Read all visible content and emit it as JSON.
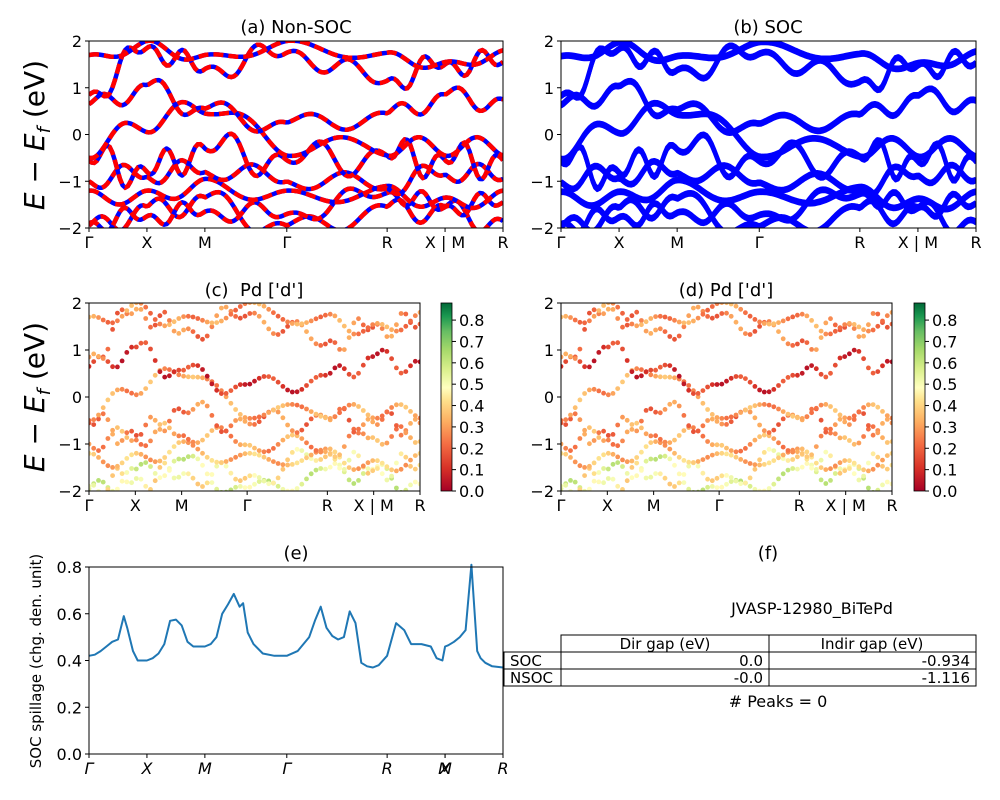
{
  "colors": {
    "nonsoc_up": "#0000ff",
    "nonsoc_dn": "#ff0000",
    "soc": "#0000ff",
    "spillage_line": "#1f77b4",
    "colormap": "RdYlGn"
  },
  "chart_data": [
    {
      "id": "a",
      "type": "line",
      "title": "(a) Non-SOC",
      "ylabel": "E − E_f (eV)",
      "ylim": [
        -2,
        2
      ],
      "yticks": [
        "−2",
        "−1",
        "0",
        "1",
        "2"
      ],
      "xticks": [
        "Γ",
        "X",
        "M",
        "Γ",
        "R",
        "X | M",
        "R"
      ],
      "xtick_positions": [
        0,
        0.5,
        1.0,
        1.707,
        2.573,
        3.073,
        3.573
      ],
      "xlim": [
        0,
        3.573
      ],
      "bands_at_ticks": [
        [
          -1.95,
          -1.55,
          -1.35,
          -1.95,
          -1.55,
          -1.55,
          -1.85
        ],
        [
          -1.9,
          -1.75,
          -1.65,
          -1.7,
          -1.25,
          -1.55,
          -1.45
        ],
        [
          -1.2,
          -1.2,
          -0.95,
          -1.2,
          -1.1,
          -1.35,
          -1.2
        ],
        [
          -1.0,
          -0.9,
          -0.8,
          -1.0,
          -1.15,
          -0.85,
          -0.95
        ],
        [
          -0.55,
          -0.8,
          -0.3,
          -0.55,
          -0.45,
          -0.55,
          -0.55
        ],
        [
          -0.5,
          0.05,
          0.45,
          -0.45,
          -0.45,
          -0.45,
          -0.45
        ],
        [
          0.65,
          1.05,
          0.55,
          0.25,
          0.45,
          0.85,
          0.75
        ],
        [
          0.85,
          1.85,
          1.4,
          1.75,
          1.15,
          1.5,
          1.55
        ],
        [
          1.7,
          2.0,
          1.7,
          2.0,
          1.75,
          1.55,
          1.8
        ]
      ],
      "band_wiggle": [
        0.35,
        0.25,
        0.3,
        0.3,
        0.45,
        0.4,
        0.3,
        0.3,
        0.2
      ]
    },
    {
      "id": "b",
      "type": "line",
      "title": "(b) SOC",
      "ylim": [
        -2,
        2
      ],
      "yticks": [
        "−2",
        "−1",
        "0",
        "1",
        "2"
      ],
      "xticks": [
        "Γ",
        "X",
        "M",
        "Γ",
        "R",
        "X | M",
        "R"
      ],
      "xtick_positions": [
        0,
        0.5,
        1.0,
        1.707,
        2.573,
        3.073,
        3.573
      ],
      "xlim": [
        0,
        3.573
      ],
      "bands_at_ticks": [
        [
          -1.95,
          -1.55,
          -1.35,
          -1.95,
          -1.55,
          -1.55,
          -1.85
        ],
        [
          -1.9,
          -1.75,
          -1.65,
          -1.7,
          -1.25,
          -1.55,
          -1.45
        ],
        [
          -1.2,
          -1.2,
          -0.95,
          -1.2,
          -1.1,
          -1.35,
          -1.2
        ],
        [
          -1.0,
          -0.9,
          -0.8,
          -1.0,
          -1.15,
          -0.85,
          -0.95
        ],
        [
          -0.55,
          -0.8,
          -0.3,
          -0.55,
          -0.45,
          -0.55,
          -0.55
        ],
        [
          -0.5,
          0.05,
          0.45,
          -0.45,
          -0.45,
          -0.45,
          -0.45
        ],
        [
          0.65,
          1.05,
          0.55,
          0.25,
          0.45,
          0.85,
          0.75
        ],
        [
          0.85,
          1.85,
          1.4,
          1.75,
          1.15,
          1.5,
          1.55
        ],
        [
          1.7,
          2.0,
          1.7,
          2.0,
          1.75,
          1.55,
          1.8
        ]
      ],
      "band_wiggle": [
        0.35,
        0.25,
        0.3,
        0.3,
        0.45,
        0.4,
        0.3,
        0.3,
        0.2
      ]
    },
    {
      "id": "c",
      "type": "scatter",
      "title": "(c)  Pd ['d']",
      "ylabel": "E − E_f (eV)",
      "ylim": [
        -2,
        2
      ],
      "yticks": [
        "−2",
        "−1",
        "0",
        "1",
        "2"
      ],
      "xticks": [
        "Γ",
        "X",
        "M",
        "Γ",
        "R",
        "X | M",
        "R"
      ],
      "xtick_positions": [
        0,
        0.5,
        1.0,
        1.707,
        2.573,
        3.073,
        3.573
      ],
      "xlim": [
        0,
        3.573
      ],
      "colorbar": {
        "min": 0.0,
        "max": 0.88,
        "ticks": [
          "0.0",
          "0.1",
          "0.2",
          "0.3",
          "0.4",
          "0.5",
          "0.6",
          "0.7",
          "0.8"
        ]
      },
      "bands_at_ticks": [
        [
          -1.95,
          -1.55,
          -1.35,
          -1.95,
          -1.55,
          -1.55,
          -1.85
        ],
        [
          -1.9,
          -1.75,
          -1.65,
          -1.7,
          -1.25,
          -1.55,
          -1.45
        ],
        [
          -1.2,
          -1.2,
          -0.95,
          -1.2,
          -1.1,
          -1.35,
          -1.2
        ],
        [
          -1.0,
          -0.9,
          -0.8,
          -1.0,
          -1.15,
          -0.85,
          -0.95
        ],
        [
          -0.55,
          -0.8,
          -0.3,
          -0.55,
          -0.45,
          -0.55,
          -0.55
        ],
        [
          -0.5,
          0.05,
          0.45,
          -0.45,
          -0.45,
          -0.45,
          -0.45
        ],
        [
          0.65,
          1.05,
          0.55,
          0.25,
          0.45,
          0.85,
          0.75
        ],
        [
          0.85,
          1.85,
          1.4,
          1.75,
          1.15,
          1.5,
          1.55
        ],
        [
          1.7,
          2.0,
          1.7,
          2.0,
          1.75,
          1.55,
          1.8
        ]
      ],
      "band_weight": [
        0.55,
        0.45,
        0.35,
        0.3,
        0.25,
        0.3,
        0.12,
        0.25,
        0.28
      ]
    },
    {
      "id": "d",
      "type": "scatter",
      "title": "(d) Pd ['d']",
      "ylim": [
        -2,
        2
      ],
      "yticks": [
        "−2",
        "−1",
        "0",
        "1",
        "2"
      ],
      "xticks": [
        "Γ",
        "X",
        "M",
        "Γ",
        "R",
        "X | M",
        "R"
      ],
      "xtick_positions": [
        0,
        0.5,
        1.0,
        1.707,
        2.573,
        3.073,
        3.573
      ],
      "xlim": [
        0,
        3.573
      ],
      "colorbar": {
        "min": 0.0,
        "max": 0.88,
        "ticks": [
          "0.0",
          "0.1",
          "0.2",
          "0.3",
          "0.4",
          "0.5",
          "0.6",
          "0.7",
          "0.8"
        ]
      },
      "bands_at_ticks": [
        [
          -1.95,
          -1.55,
          -1.35,
          -1.95,
          -1.55,
          -1.55,
          -1.85
        ],
        [
          -1.9,
          -1.75,
          -1.65,
          -1.7,
          -1.25,
          -1.55,
          -1.45
        ],
        [
          -1.2,
          -1.2,
          -0.95,
          -1.2,
          -1.1,
          -1.35,
          -1.2
        ],
        [
          -1.0,
          -0.9,
          -0.8,
          -1.0,
          -1.15,
          -0.85,
          -0.95
        ],
        [
          -0.55,
          -0.8,
          -0.3,
          -0.55,
          -0.45,
          -0.55,
          -0.55
        ],
        [
          -0.5,
          0.05,
          0.45,
          -0.45,
          -0.45,
          -0.45,
          -0.45
        ],
        [
          0.65,
          1.05,
          0.55,
          0.25,
          0.45,
          0.85,
          0.75
        ],
        [
          0.85,
          1.85,
          1.4,
          1.75,
          1.15,
          1.5,
          1.55
        ],
        [
          1.7,
          2.0,
          1.7,
          2.0,
          1.75,
          1.55,
          1.8
        ]
      ],
      "band_weight": [
        0.55,
        0.45,
        0.35,
        0.3,
        0.25,
        0.3,
        0.12,
        0.25,
        0.28
      ]
    },
    {
      "id": "e",
      "type": "line",
      "title": "(e)",
      "ylabel": "SOC spillage (chg. den. unit)",
      "ylim": [
        0.0,
        0.8
      ],
      "yticks": [
        "0.0",
        "0.2",
        "0.4",
        "0.6",
        "0.8"
      ],
      "xticks": [
        "Γ",
        "X",
        "M",
        "Γ",
        "R",
        "X",
        "M",
        "R"
      ],
      "xtick_positions": [
        0,
        0.5,
        1.0,
        1.707,
        2.573,
        3.073,
        3.073,
        3.573
      ],
      "xlim": [
        0,
        3.573
      ],
      "x": [
        0,
        0.05,
        0.1,
        0.15,
        0.2,
        0.25,
        0.3,
        0.33,
        0.38,
        0.42,
        0.47,
        0.5,
        0.55,
        0.6,
        0.65,
        0.7,
        0.75,
        0.8,
        0.85,
        0.9,
        0.95,
        1.0,
        1.05,
        1.1,
        1.15,
        1.2,
        1.25,
        1.3,
        1.33,
        1.37,
        1.42,
        1.5,
        1.6,
        1.707,
        1.8,
        1.9,
        1.95,
        2.0,
        2.05,
        2.1,
        2.15,
        2.2,
        2.25,
        2.3,
        2.35,
        2.4,
        2.45,
        2.5,
        2.573,
        2.65,
        2.72,
        2.78,
        2.82,
        2.87,
        2.95,
        3.0,
        3.05,
        3.073,
        3.1,
        3.15,
        3.2,
        3.25,
        3.3,
        3.35,
        3.38,
        3.42,
        3.48,
        3.573
      ],
      "values": [
        0.42,
        0.425,
        0.44,
        0.46,
        0.48,
        0.49,
        0.59,
        0.54,
        0.44,
        0.4,
        0.4,
        0.4,
        0.41,
        0.43,
        0.47,
        0.57,
        0.575,
        0.55,
        0.48,
        0.46,
        0.46,
        0.46,
        0.47,
        0.5,
        0.6,
        0.64,
        0.685,
        0.63,
        0.645,
        0.52,
        0.47,
        0.43,
        0.42,
        0.42,
        0.44,
        0.5,
        0.57,
        0.63,
        0.54,
        0.505,
        0.49,
        0.5,
        0.61,
        0.56,
        0.39,
        0.375,
        0.37,
        0.38,
        0.42,
        0.56,
        0.53,
        0.47,
        0.47,
        0.47,
        0.46,
        0.41,
        0.4,
        0.46,
        0.465,
        0.48,
        0.5,
        0.53,
        0.81,
        0.44,
        0.41,
        0.39,
        0.375,
        0.37
      ]
    }
  ],
  "panel_f": {
    "title": "(f)",
    "material": "JVASP-12980_BiTePd",
    "table": {
      "headers": [
        "",
        "Dir gap (eV)",
        "Indir gap (eV)"
      ],
      "rows": [
        [
          "SOC",
          "0.0",
          "-0.934"
        ],
        [
          "NSOC",
          "-0.0",
          "-1.116"
        ]
      ]
    },
    "peaks": "# Peaks = 0"
  }
}
